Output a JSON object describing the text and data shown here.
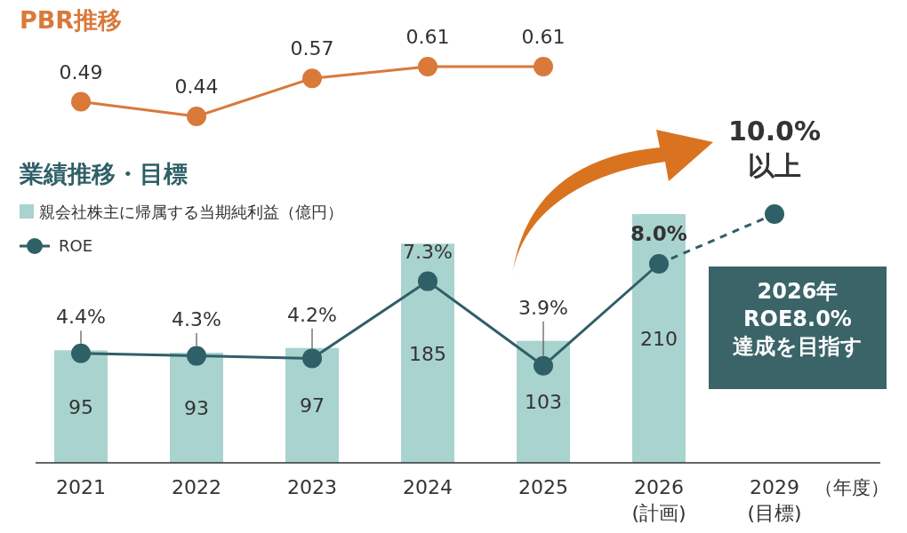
{
  "chart_data": [
    {
      "type": "line",
      "title": "PBR推移",
      "categories": [
        null,
        null,
        null,
        null,
        null,
        null,
        null
      ],
      "tick_labels": false,
      "marker": "circle",
      "data_labels": true,
      "series": [
        {
          "color": "#d9793a",
          "values": [
            0.49,
            0.44,
            0.57,
            0.61,
            0.61,
            null,
            null
          ]
        }
      ]
    },
    {
      "type": "bar",
      "title": "業績推移・目標",
      "categories": [
        "2021",
        "2022",
        "2023",
        "2024",
        "2025",
        "2026\n(計画)",
        "2029\n(目標)"
      ],
      "xlabel": "（年度）",
      "tick_labels": "x",
      "legend": "top left",
      "marker": "circle",
      "series": [
        {
          "name": "親会社株主に帰属する当期純利益（億円）",
          "color": "#a9d3ce",
          "values": [
            95,
            93,
            97,
            185,
            103,
            210,
            null
          ],
          "value_labels": [
            "95",
            "93",
            "97",
            "185",
            "103",
            "210",
            null
          ]
        },
        {
          "type": "line",
          "name": "ROE",
          "axis": "y2",
          "color": "#2f5f67",
          "line_style": "solid",
          "values": [
            4.4,
            4.3,
            4.2,
            7.3,
            3.9,
            8.0,
            null
          ],
          "value_labels": [
            "4.4%",
            "4.3%",
            "4.2%",
            "7.3%",
            "3.9%",
            null,
            null
          ]
        },
        {
          "type": "line",
          "axis": "y2",
          "color": "#2f5f67",
          "line_style": "dashed",
          "values": [
            null,
            null,
            null,
            null,
            null,
            8.0,
            10.0
          ],
          "value_labels": [
            null,
            null,
            null,
            null,
            null,
            "8.0%",
            "10.0%\n以上"
          ]
        }
      ],
      "annotations": [
        "2026年\nROE8.0%\n達成を目指す"
      ]
    }
  ]
}
